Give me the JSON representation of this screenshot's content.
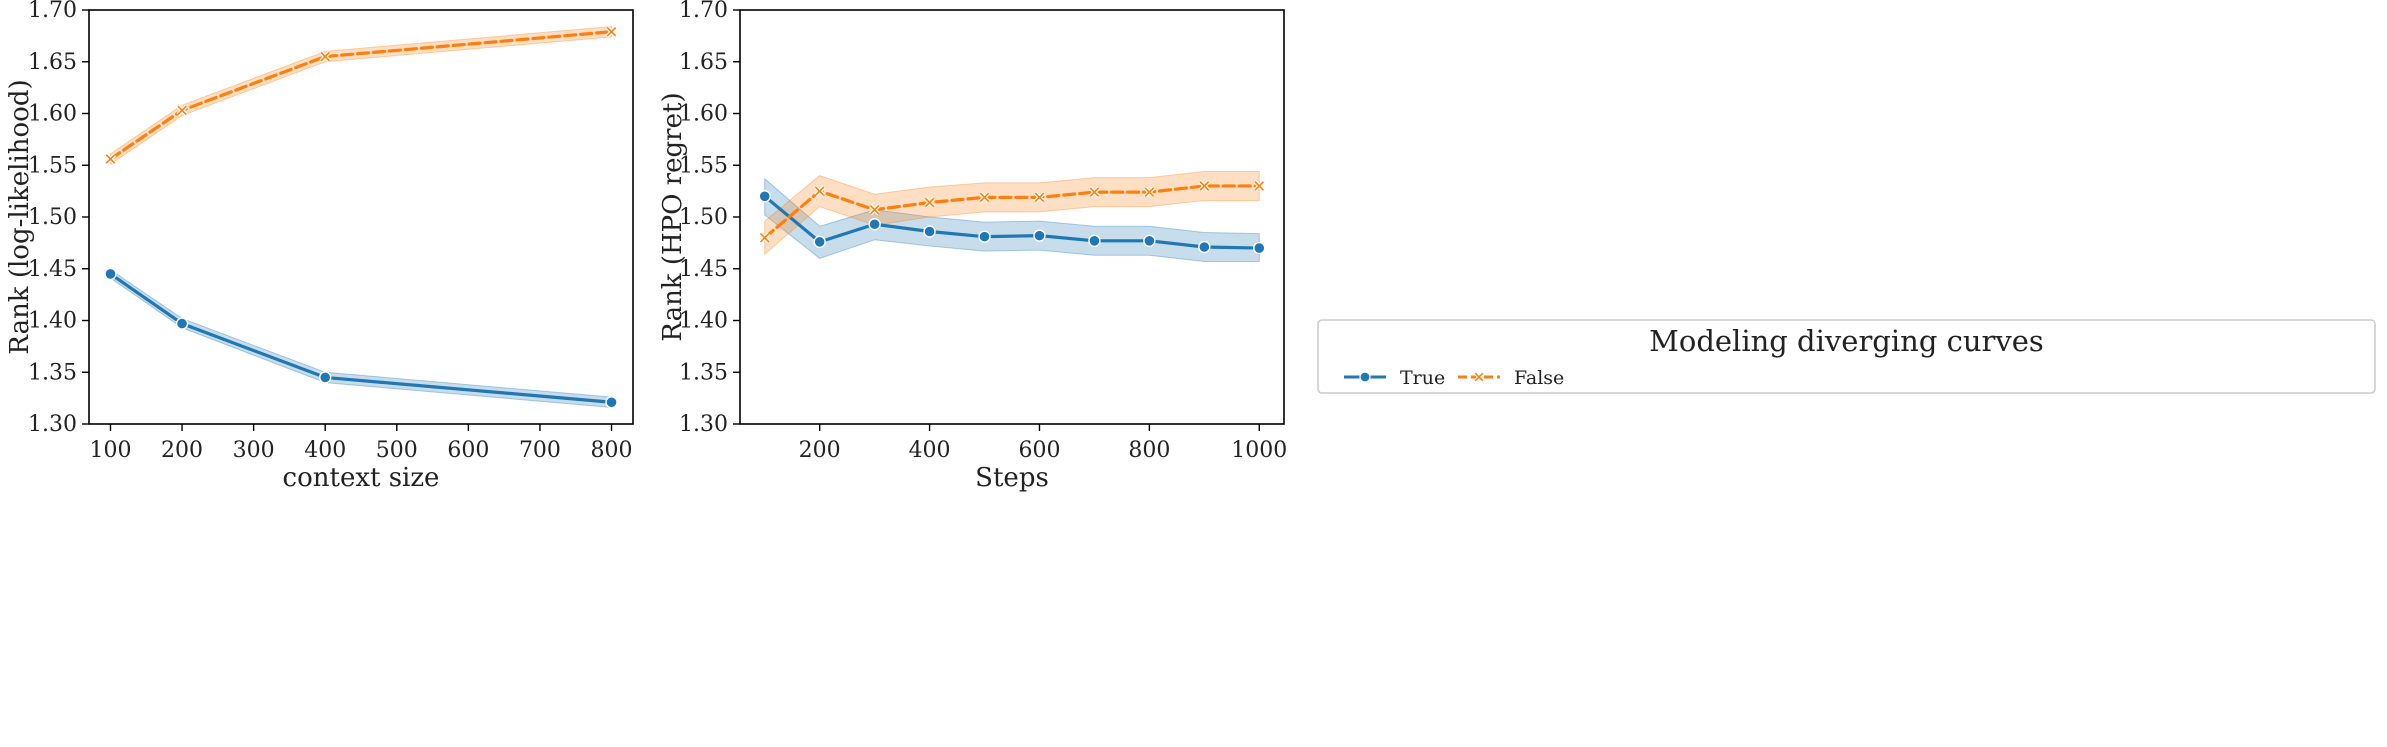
{
  "chart_data": [
    {
      "type": "line",
      "title": "",
      "xlabel": "context size",
      "ylabel": "Rank (log-likelihood)",
      "xlim": [
        70,
        830
      ],
      "ylim": [
        1.3,
        1.7
      ],
      "xticks": [
        100,
        200,
        300,
        400,
        500,
        600,
        700,
        800
      ],
      "xtick_labels": [
        "100",
        "200",
        "300",
        "400",
        "500",
        "600",
        "700",
        "800"
      ],
      "yticks": [
        1.3,
        1.35,
        1.4,
        1.45,
        1.5,
        1.55,
        1.6,
        1.65,
        1.7
      ],
      "ytick_labels": [
        "1.30",
        "1.35",
        "1.40",
        "1.45",
        "1.50",
        "1.55",
        "1.60",
        "1.65",
        "1.70"
      ],
      "grid": false,
      "x": [
        100,
        200,
        400,
        800
      ],
      "series": [
        {
          "name": "True",
          "color": "#1f77b4",
          "style": "solid",
          "marker": "o",
          "values": [
            1.445,
            1.397,
            1.345,
            1.321
          ],
          "ci_lower": [
            1.441,
            1.393,
            1.34,
            1.316
          ],
          "ci_upper": [
            1.449,
            1.402,
            1.35,
            1.326
          ]
        },
        {
          "name": "False",
          "color": "#ff7f0e",
          "style": "dashed",
          "marker": "x",
          "values": [
            1.556,
            1.603,
            1.655,
            1.679
          ],
          "ci_lower": [
            1.551,
            1.598,
            1.65,
            1.674
          ],
          "ci_upper": [
            1.561,
            1.608,
            1.66,
            1.684
          ]
        }
      ]
    },
    {
      "type": "line",
      "title": "",
      "xlabel": "Steps",
      "ylabel": "Rank (HPO regret)",
      "xlim": [
        55,
        1045
      ],
      "ylim": [
        1.3,
        1.7
      ],
      "xticks": [
        200,
        400,
        600,
        800,
        1000
      ],
      "xtick_labels": [
        "200",
        "400",
        "600",
        "800",
        "1000"
      ],
      "yticks": [
        1.3,
        1.35,
        1.4,
        1.45,
        1.5,
        1.55,
        1.6,
        1.65,
        1.7
      ],
      "ytick_labels": [
        "1.30",
        "1.35",
        "1.40",
        "1.45",
        "1.50",
        "1.55",
        "1.60",
        "1.65",
        "1.70"
      ],
      "grid": false,
      "x": [
        100,
        200,
        300,
        400,
        500,
        600,
        700,
        800,
        900,
        1000
      ],
      "series": [
        {
          "name": "True",
          "color": "#1f77b4",
          "style": "solid",
          "marker": "o",
          "values": [
            1.52,
            1.476,
            1.493,
            1.486,
            1.481,
            1.482,
            1.477,
            1.477,
            1.471,
            1.47
          ],
          "ci_lower": [
            1.502,
            1.46,
            1.478,
            1.472,
            1.467,
            1.468,
            1.463,
            1.463,
            1.457,
            1.457
          ],
          "ci_upper": [
            1.537,
            1.491,
            1.507,
            1.5,
            1.495,
            1.496,
            1.491,
            1.491,
            1.485,
            1.484
          ]
        },
        {
          "name": "False",
          "color": "#ff7f0e",
          "style": "dashed",
          "marker": "x",
          "values": [
            1.48,
            1.525,
            1.507,
            1.514,
            1.519,
            1.519,
            1.524,
            1.524,
            1.53,
            1.53
          ],
          "ci_lower": [
            1.464,
            1.51,
            1.492,
            1.5,
            1.505,
            1.505,
            1.51,
            1.51,
            1.516,
            1.516
          ],
          "ci_upper": [
            1.496,
            1.54,
            1.522,
            1.529,
            1.533,
            1.533,
            1.538,
            1.538,
            1.544,
            1.544
          ]
        }
      ]
    }
  ],
  "legend": {
    "title": "Modeling diverging curves",
    "placement": "right-center",
    "entries": [
      "True",
      "False"
    ]
  }
}
